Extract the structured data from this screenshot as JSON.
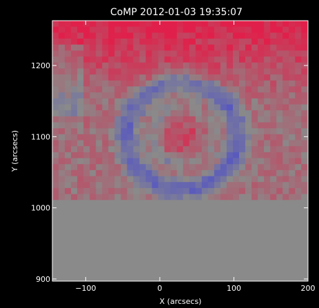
{
  "chart_data": {
    "type": "heatmap",
    "title": "CoMP 2012-01-03 19:35:07",
    "xlabel": "X (arcsecs)",
    "ylabel": "Y (arcsecs)",
    "xlim": [
      -145,
      200
    ],
    "ylim": [
      897,
      1263
    ],
    "xticks": [
      -100,
      0,
      100,
      200
    ],
    "xtick_labels": [
      "−100",
      "0",
      "100",
      "200"
    ],
    "yticks": [
      900,
      1000,
      1100,
      1200
    ],
    "ytick_labels": [
      "900",
      "1000",
      "1100",
      "1200"
    ],
    "occulter_edge_y": 1010,
    "grid": false,
    "color_scale": {
      "negative": "#5050c8",
      "zero": "#8a8a8a",
      "positive": "#e0204a"
    },
    "spiral_feature": {
      "center": [
        30,
        1100
      ],
      "description_values_blue_ring_radius": 75,
      "red_core_radius": 25
    },
    "background_color": "#000000",
    "axis_color": "#ffffff"
  }
}
